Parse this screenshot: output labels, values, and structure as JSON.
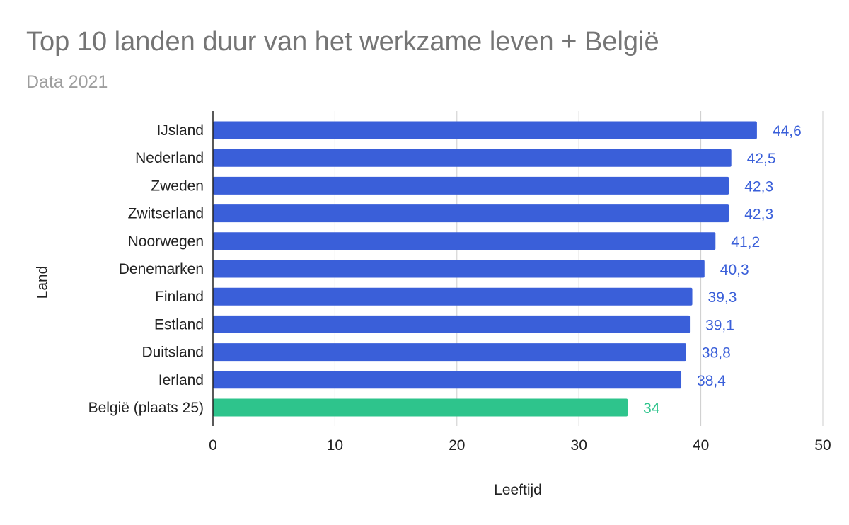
{
  "chart_data": {
    "type": "bar",
    "orientation": "horizontal",
    "title": "Top 10 landen duur van het werkzame leven + België",
    "subtitle": "Data 2021",
    "xlabel": "Leeftijd",
    "ylabel": "Land",
    "xlim": [
      0,
      50
    ],
    "xticks": [
      "0",
      "10",
      "20",
      "30",
      "40",
      "50"
    ],
    "grid": true,
    "categories": [
      "IJsland",
      "Nederland",
      "Zweden",
      "Zwitserland",
      "Noorwegen",
      "Denemarken",
      "Finland",
      "Estland",
      "Duitsland",
      "Ierland",
      "België (plaats 25)"
    ],
    "values": [
      44.6,
      42.5,
      42.3,
      42.3,
      41.2,
      40.3,
      39.3,
      39.1,
      38.8,
      38.4,
      34
    ],
    "value_labels": [
      "44,6",
      "42,5",
      "42,3",
      "42,3",
      "41,2",
      "40,3",
      "39,3",
      "39,1",
      "38,8",
      "38,4",
      "34"
    ],
    "colors": [
      "#3a5fd9",
      "#3a5fd9",
      "#3a5fd9",
      "#3a5fd9",
      "#3a5fd9",
      "#3a5fd9",
      "#3a5fd9",
      "#3a5fd9",
      "#3a5fd9",
      "#3a5fd9",
      "#2ec48c"
    ]
  }
}
